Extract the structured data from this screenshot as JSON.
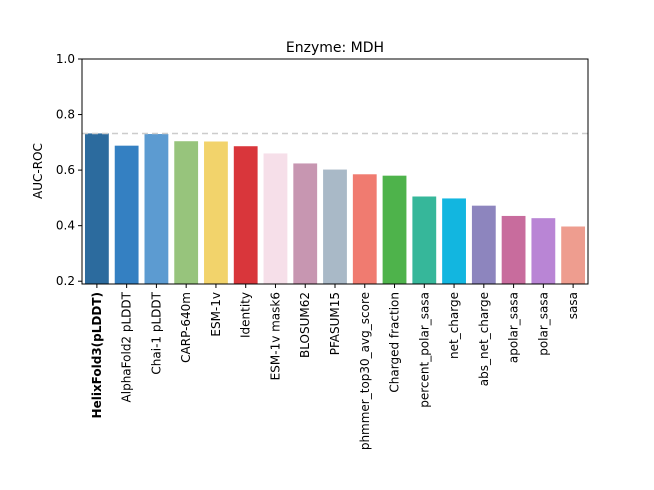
{
  "chart_data": {
    "type": "bar",
    "title": "Enzyme: MDH",
    "xlabel": "",
    "ylabel": "AUC-ROC",
    "ylim": [
      0.19,
      1.0
    ],
    "yticks": [
      "0.2",
      "0.4",
      "0.6",
      "0.8",
      "1.0"
    ],
    "reference_line": 0.732,
    "highlighted_category": "HelixFold3(pLDDT)",
    "categories": [
      "HelixFold3(pLDDT)",
      "AlphaFold2 pLDDT",
      "Chai-1 pLDDT",
      "CARP-640m",
      "ESM-1v",
      "Identity",
      "ESM-1v mask6",
      "BLOSUM62",
      "PFASUM15",
      "phmmer_top30_avg_score",
      "Charged fraction",
      "percent_polar_sasa",
      "net_charge",
      "abs_net_charge",
      "apolar_sasa",
      "polar_sasa",
      "sasa"
    ],
    "values": [
      0.732,
      0.688,
      0.73,
      0.704,
      0.703,
      0.686,
      0.66,
      0.624,
      0.602,
      0.585,
      0.58,
      0.505,
      0.498,
      0.472,
      0.435,
      0.427,
      0.397
    ],
    "colors": [
      "#2c6b9e",
      "#3480c2",
      "#5c9bd1",
      "#97c47c",
      "#f2d36b",
      "#d9363b",
      "#f6dfe9",
      "#c796b1",
      "#a9b9c7",
      "#f07b70",
      "#4eb34b",
      "#36b79a",
      "#12b6e0",
      "#8d85be",
      "#c86c9d",
      "#b985d5",
      "#ee9d8f"
    ]
  }
}
